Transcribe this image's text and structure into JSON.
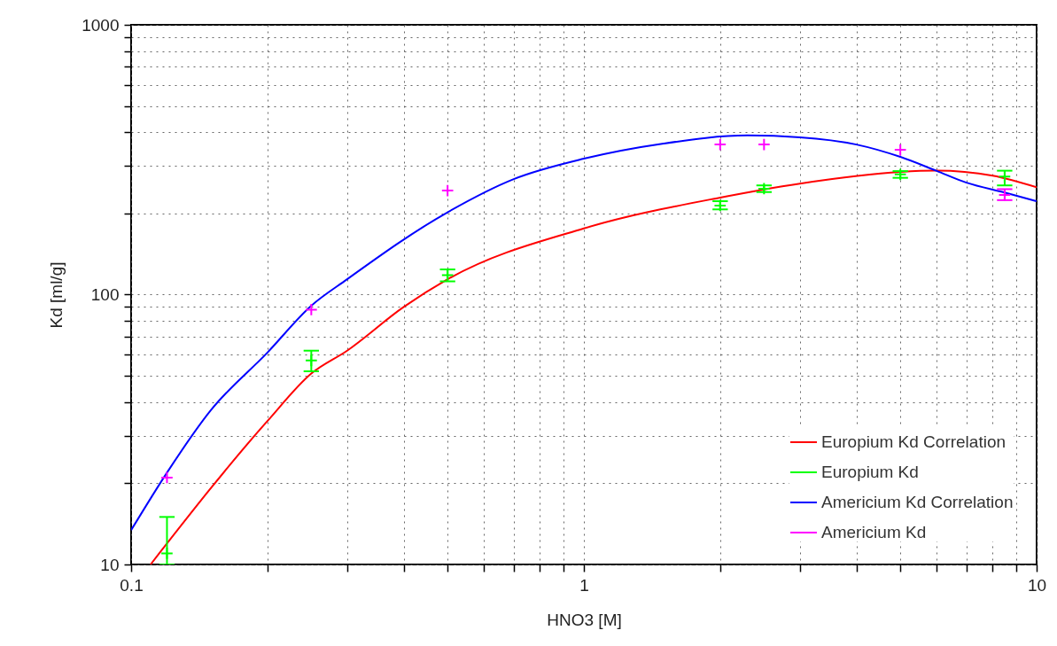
{
  "chart_data": {
    "type": "scatter",
    "xlabel": "HNO3 [M]",
    "ylabel": "Kd [ml/g]",
    "log": "xy",
    "grid": true,
    "legend": "bottom right",
    "xlim": [
      0.1,
      10
    ],
    "ylim": [
      10,
      1000
    ],
    "xticks": [
      0.1,
      {
        "value": 0.2,
        "label": null
      },
      {
        "value": 0.3,
        "label": null
      },
      {
        "value": 0.4,
        "label": null
      },
      {
        "value": 0.5,
        "label": null
      },
      {
        "value": 0.6,
        "label": null
      },
      {
        "value": 0.7,
        "label": null
      },
      {
        "value": 0.8,
        "label": null
      },
      {
        "value": 0.9,
        "label": null
      },
      1,
      {
        "value": 2,
        "label": null
      },
      {
        "value": 3,
        "label": null
      },
      {
        "value": 4,
        "label": null
      },
      {
        "value": 5,
        "label": null
      },
      {
        "value": 6,
        "label": null
      },
      {
        "value": 7,
        "label": null
      },
      {
        "value": 8,
        "label": null
      },
      {
        "value": 9,
        "label": null
      },
      10
    ],
    "yticks": [
      10,
      {
        "value": 20,
        "label": null
      },
      {
        "value": 30,
        "label": null
      },
      {
        "value": 40,
        "label": null
      },
      {
        "value": 50,
        "label": null
      },
      {
        "value": 60,
        "label": null
      },
      {
        "value": 70,
        "label": null
      },
      {
        "value": 80,
        "label": null
      },
      {
        "value": 90,
        "label": null
      },
      100,
      {
        "value": 200,
        "label": null
      },
      {
        "value": 300,
        "label": null
      },
      {
        "value": 400,
        "label": null
      },
      {
        "value": 500,
        "label": null
      },
      {
        "value": 600,
        "label": null
      },
      {
        "value": 700,
        "label": null
      },
      {
        "value": 800,
        "label": null
      },
      {
        "value": 900,
        "label": null
      },
      1000
    ],
    "series": [
      {
        "name": "Europium Kd Correlation",
        "type": "line",
        "color": "#ff0000",
        "x": [
          0.1104,
          0.2,
          0.25,
          0.3,
          0.4,
          0.5,
          1,
          2,
          3,
          5,
          6,
          8,
          10
        ],
        "values": [
          10,
          34,
          51,
          62,
          90,
          114,
          176,
          229,
          258,
          285,
          288,
          276,
          250
        ]
      },
      {
        "name": "Europium Kd",
        "marker": "cross",
        "color": "#00ff00",
        "x": [
          0.12,
          0.25,
          0.5,
          2,
          2.5,
          5,
          8.5
        ],
        "values": [
          11,
          57,
          118,
          214,
          247,
          279,
          274
        ],
        "errors": [
          [
            10,
            15
          ],
          [
            52,
            62
          ],
          [
            112,
            124
          ],
          [
            207,
            222
          ],
          [
            240,
            254
          ],
          [
            271,
            287
          ],
          [
            254,
            288
          ]
        ]
      },
      {
        "name": "Americium Kd Correlation",
        "type": "line",
        "color": "#0000ff",
        "x": [
          0.1,
          0.12,
          0.15,
          0.2,
          0.25,
          0.3,
          0.5,
          0.7,
          1,
          1.5,
          2.3,
          3,
          4,
          5,
          6,
          7,
          8.5,
          10
        ],
        "values": [
          13.4,
          21.9,
          37.3,
          61,
          91,
          114,
          202,
          268,
          319,
          363,
          389,
          383,
          360,
          324,
          288,
          260,
          239,
          222
        ]
      },
      {
        "name": "Americium Kd",
        "marker": "cross",
        "color": "#ff00ff",
        "x": [
          0.12,
          0.25,
          0.5,
          2,
          2.5,
          5,
          8.5
        ],
        "values": [
          21,
          88,
          243,
          360,
          360,
          344,
          234
        ],
        "errors": [
          null,
          null,
          null,
          null,
          null,
          null,
          [
            224,
            246
          ]
        ]
      }
    ]
  }
}
